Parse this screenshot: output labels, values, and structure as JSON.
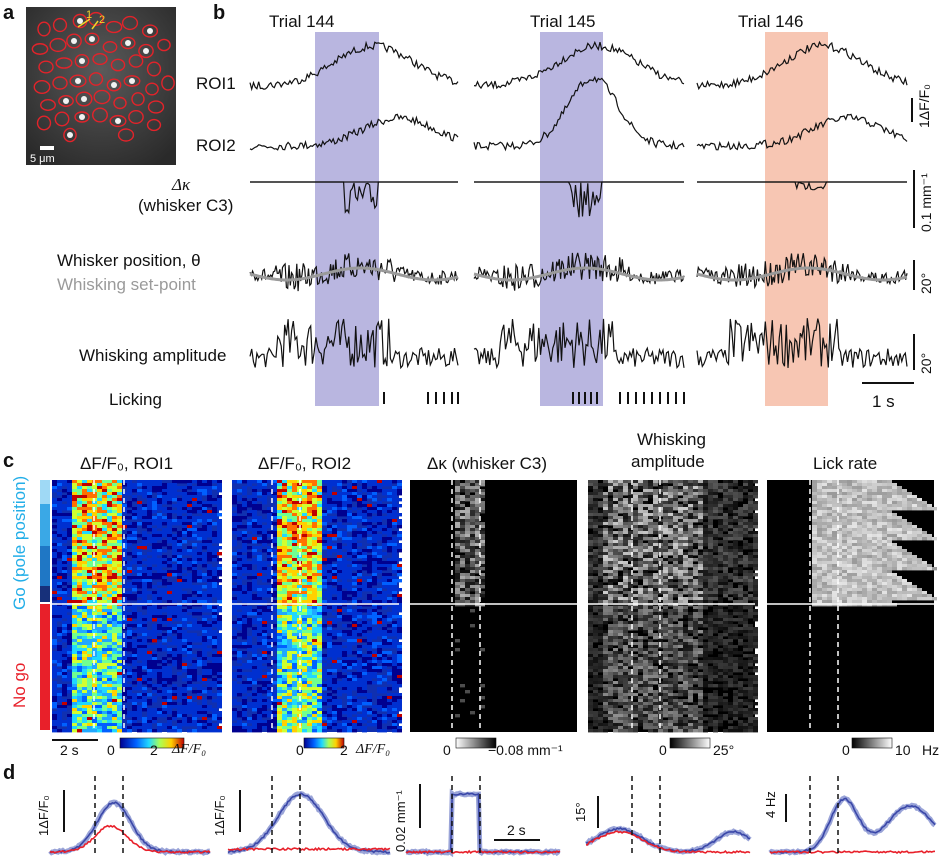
{
  "panels": {
    "a": "a",
    "b": "b",
    "c": "c",
    "d": "d"
  },
  "panel_a": {
    "roi_1": "1",
    "roi_2": "2",
    "scale": "5 μm"
  },
  "panel_b": {
    "trials": [
      "Trial 144",
      "Trial 145",
      "Trial 146"
    ],
    "rows": {
      "roi1": "ROI1",
      "roi2": "ROI2",
      "dk_symbol": "Δκ",
      "dk_sub": "(whisker C3)",
      "position": "Whisker position, θ",
      "setpoint": "Whisking set-point",
      "amplitude": "Whisking amplitude",
      "licking": "Licking"
    },
    "scalebars": {
      "dff": "1ΔF/F₀",
      "curv": "0.1 mm⁻¹",
      "pos": "20°",
      "amp": "20°",
      "time": "1 s"
    },
    "colors": {
      "go": "#b9b6e0",
      "nogo": "#f7c6b3"
    }
  },
  "panel_c": {
    "titles": [
      "ΔF/F₀, ROI1",
      "ΔF/F₀, ROI2",
      "Δκ (whisker C3)",
      "Whisking",
      "amplitude",
      "Lick rate"
    ],
    "group_go": "Go (pole position)",
    "group_nogo": "No go",
    "time_scale": "2 s",
    "colorbars": [
      {
        "min": "0",
        "max": "2",
        "unit": "ΔF/F₀"
      },
      {
        "min": "0",
        "max": "2",
        "unit": "ΔF/F₀"
      },
      {
        "min": "0",
        "max": "−0.08 mm⁻¹",
        "unit": ""
      },
      {
        "min": "0",
        "max": "25°",
        "unit": ""
      },
      {
        "min": "0",
        "max": "10",
        "unit": "Hz"
      }
    ],
    "colors": {
      "go": "#22aee8",
      "nogo": "#e8202a"
    }
  },
  "panel_d": {
    "scalebars": [
      "1ΔF/F₀",
      "1ΔF/F₀",
      "0.02 mm⁻¹",
      "15°",
      "4 Hz"
    ],
    "time_scale": "2 s",
    "colors": {
      "go": "#3a47a8",
      "nogo": "#e8202a"
    }
  }
}
